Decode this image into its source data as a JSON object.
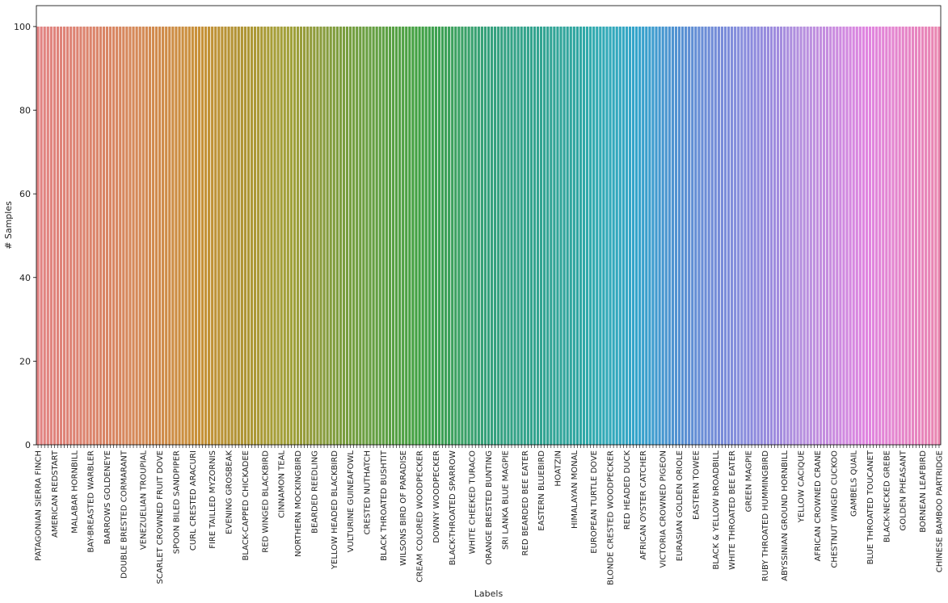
{
  "chart_data": {
    "type": "bar",
    "title": "",
    "xlabel": "Labels",
    "ylabel": "# Samples",
    "ylim": [
      0,
      105
    ],
    "yticks": [
      0,
      20,
      40,
      60,
      80,
      100
    ],
    "grid": false,
    "legend": "none",
    "palette": "husl",
    "bar_count": 275,
    "bar_value": 100,
    "categories": [
      "PATAGONIAN SIERRA FINCH",
      "AMERICAN REDSTART",
      "MALABAR HORNBILL",
      "BAY-BREASTED WARBLER",
      "BARROWS GOLDENEYE",
      "DOUBLE BRESTED CORMARANT",
      "VENEZUELIAN TROUPIAL",
      "SCARLET CROWNED FRUIT DOVE",
      "SPOON BILED SANDPIPER",
      "CURL CRESTED ARACURI",
      "FIRE TAILLED MYZORNIS",
      "EVENING GROSBEAK",
      "BLACK-CAPPED CHICKADEE",
      "RED WINGED BLACKBIRD",
      "CINNAMON TEAL",
      "NORTHERN MOCKINGBIRD",
      "BEARDED REEDLING",
      "YELLOW HEADED BLACKBIRD",
      "VULTURINE GUINEAFOWL",
      "CRESTED NUTHATCH",
      "BLACK THROATED BUSHTIT",
      "WILSONS BIRD OF PARADISE",
      "CREAM COLORED WOODPECKER",
      "DOWNY WOODPECKER",
      "BLACK-THROATED SPARROW",
      "WHITE CHEEKED TURACO",
      "ORANGE BRESTED BUNTING",
      "SRI LANKA BLUE MAGPIE",
      "RED BEARDED BEE EATER",
      "EASTERN BLUEBIRD",
      "HOATZIN",
      "HIMALAYAN MONAL",
      "EUROPEAN TURTLE DOVE",
      "BLONDE CRESTED WOODPECKER",
      "RED HEADED DUCK",
      "AFRICAN OYSTER CATCHER",
      "VICTORIA CROWNED PIGEON",
      "EURASIAN GOLDEN ORIOLE",
      "EASTERN TOWEE",
      "BLACK & YELLOW bROADBILL",
      "WHITE THROATED BEE EATER",
      "GREEN MAGPIE",
      "RUBY THROATED HUMMINGBIRD",
      "ABYSSINIAN GROUND HORNBILL",
      "YELLOW CACIQUE",
      "AFRICAN CROWNED CRANE",
      "CHESTNUT WINGED CUCKOO",
      "GAMBELS QUAIL",
      "BLUE THROATED TOUCANET",
      "BLACK-NECKED GREBE",
      "GOLDEN PHEASANT",
      "BORNEAN LEAFBIRD",
      "CHINESE BAMBOO PARTRIDGE"
    ]
  }
}
